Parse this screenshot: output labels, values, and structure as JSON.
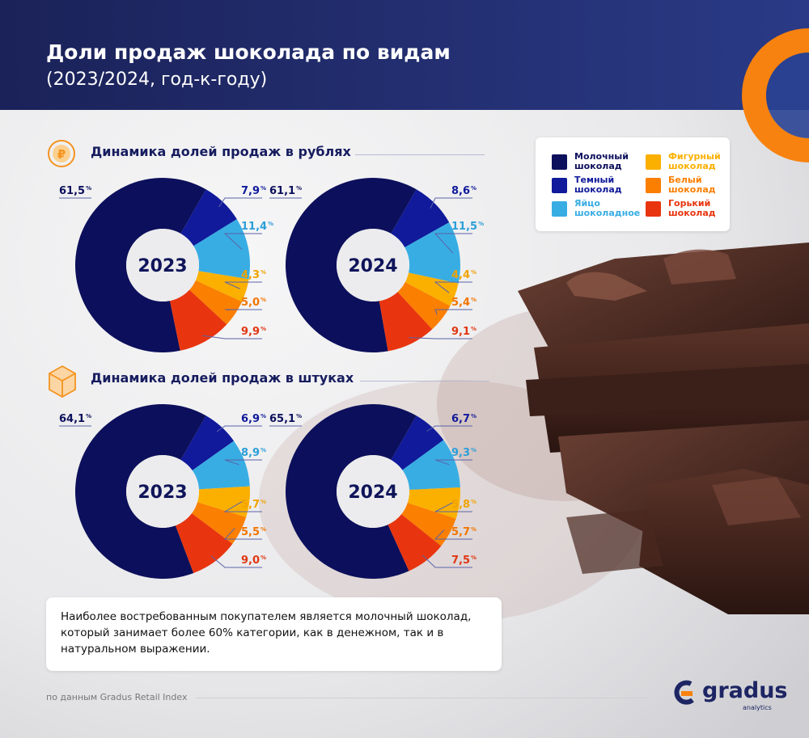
{
  "header": {
    "title": "Доли продаж шоколада по видам",
    "subtitle": "(2023/2024, год-к-году)"
  },
  "sections": {
    "rub": {
      "title": "Динамика долей продаж в рублях",
      "icon": "ruble-coin-icon"
    },
    "units": {
      "title": "Динамика долей продаж в штуках",
      "icon": "box-icon"
    }
  },
  "legend": [
    {
      "label": "Молочный шоколад",
      "color": "#0c0f5b"
    },
    {
      "label": "Темный шоколад",
      "color": "#101a9a"
    },
    {
      "label": "Яйцо шоколадное",
      "color": "#38ade3"
    },
    {
      "label": "Фигурный шоколад",
      "color": "#fbb000"
    },
    {
      "label": "Белый шоколад",
      "color": "#fb7f00"
    },
    {
      "label": "Горький шоколад",
      "color": "#e8350f"
    }
  ],
  "chart_data": [
    {
      "type": "pie",
      "section": "Динамика долей продаж в рублях",
      "center_label": "2023",
      "categories": [
        "Молочный шоколад",
        "Темный шоколад",
        "Яйцо шоколадное",
        "Фигурный шоколад",
        "Белый шоколад",
        "Горький шоколад"
      ],
      "values": [
        61.5,
        7.9,
        11.4,
        4.3,
        5.0,
        9.9
      ],
      "value_labels": [
        "61,5",
        "7,9",
        "11,4",
        "4,3",
        "5,0",
        "9,9"
      ],
      "unit": "%"
    },
    {
      "type": "pie",
      "section": "Динамика долей продаж в рублях",
      "center_label": "2024",
      "categories": [
        "Молочный шоколад",
        "Темный шоколад",
        "Яйцо шоколадное",
        "Фигурный шоколад",
        "Белый шоколад",
        "Горький шоколад"
      ],
      "values": [
        61.1,
        8.6,
        11.5,
        4.4,
        5.4,
        9.1
      ],
      "value_labels": [
        "61,1",
        "8,6",
        "11,5",
        "4,4",
        "5,4",
        "9,1"
      ],
      "unit": "%"
    },
    {
      "type": "pie",
      "section": "Динамика долей продаж в штуках",
      "center_label": "2023",
      "categories": [
        "Молочный шоколад",
        "Темный шоколад",
        "Яйцо шоколадное",
        "Фигурный шоколад",
        "Белый шоколад",
        "Горький шоколад"
      ],
      "values": [
        64.1,
        6.9,
        8.9,
        5.7,
        5.5,
        9.0
      ],
      "value_labels": [
        "64,1",
        "6,9",
        "8,9",
        "5,7",
        "5,5",
        "9,0"
      ],
      "unit": "%"
    },
    {
      "type": "pie",
      "section": "Динамика долей продаж в штуках",
      "center_label": "2024",
      "categories": [
        "Молочный шоколад",
        "Темный шоколад",
        "Яйцо шоколадное",
        "Фигурный шоколад",
        "Белый шоколад",
        "Горький шоколад"
      ],
      "values": [
        65.1,
        6.7,
        9.3,
        5.8,
        5.7,
        7.5
      ],
      "value_labels": [
        "65,1",
        "6,7",
        "9,3",
        "5,8",
        "5,7",
        "7,5"
      ],
      "unit": "%"
    }
  ],
  "note": "Наиболее востребованным покупателем является молочный шоколад, который занимает более 60% категории, как в денежном, так и в натуральном выражении.",
  "footer": {
    "source": "по данным Gradus Retail Index",
    "brand": "gradus",
    "brand_sub": "analytics"
  },
  "colors": {
    "header": "#1e2560",
    "accent_orange": "#f7820f",
    "label_line": "#5a63a8"
  }
}
